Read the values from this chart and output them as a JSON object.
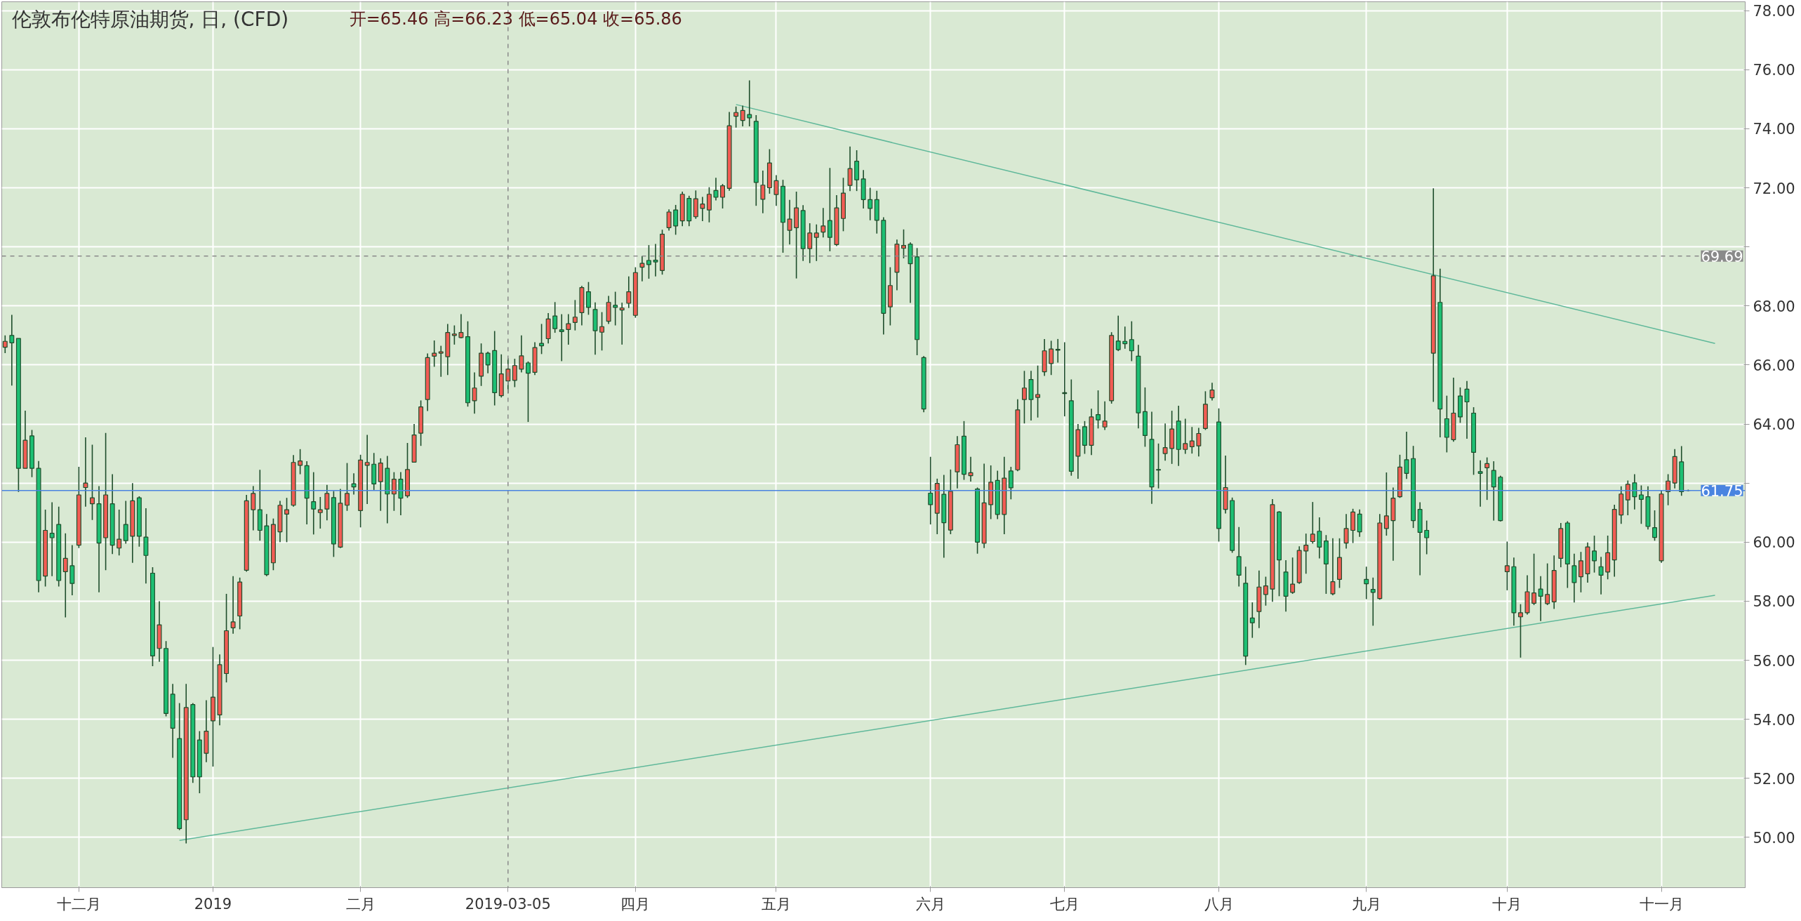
{
  "chart_data": {
    "type": "candlestick",
    "title": "伦敦布伦特原油期货, 日, (CFD)",
    "subtitle": "开=65.46 高=66.23 低=65.04 收=65.86",
    "categories": [
      null,
      null,
      null,
      null,
      null,
      null,
      null,
      null,
      null,
      null,
      null,
      "十二月",
      null,
      null,
      null,
      null,
      null,
      null,
      null,
      null,
      null,
      null,
      null,
      null,
      null,
      null,
      null,
      null,
      null,
      null,
      null,
      "2019",
      null,
      null,
      null,
      null,
      null,
      null,
      null,
      null,
      null,
      null,
      null,
      null,
      null,
      null,
      null,
      null,
      null,
      null,
      null,
      null,
      null,
      "二月",
      null,
      null,
      null,
      null,
      null,
      null,
      null,
      null,
      null,
      null,
      null,
      null,
      null,
      null,
      null,
      null,
      null,
      null,
      null,
      null,
      null,
      "2019-03-05",
      null,
      null,
      null,
      null,
      null,
      null,
      null,
      null,
      null,
      null,
      null,
      null,
      null,
      null,
      null,
      null,
      null,
      null,
      "四月",
      null,
      null,
      null,
      null,
      null,
      null,
      null,
      null,
      null,
      null,
      null,
      null,
      null,
      null,
      null,
      null,
      null,
      null,
      null,
      null,
      "五月",
      null,
      null,
      null,
      null,
      null,
      null,
      null,
      null,
      null,
      null,
      null,
      null,
      null,
      null,
      null,
      null,
      null,
      null,
      null,
      null,
      null,
      null,
      "六月",
      null,
      null,
      null,
      null,
      null,
      null,
      null,
      null,
      null,
      null,
      null,
      null,
      null,
      null,
      null,
      null,
      null,
      null,
      null,
      "七月",
      null,
      null,
      null,
      null,
      null,
      null,
      null,
      null,
      null,
      null,
      null,
      null,
      null,
      null,
      null,
      null,
      null,
      null,
      null,
      null,
      null,
      null,
      "八月",
      null,
      null,
      null,
      null,
      null,
      null,
      null,
      null,
      null,
      null,
      null,
      null,
      null,
      null,
      null,
      null,
      null,
      null,
      null,
      null,
      null,
      "九月",
      null,
      null,
      null,
      null,
      null,
      null,
      null,
      null,
      null,
      null,
      null,
      null,
      null,
      null,
      null,
      null,
      null,
      null,
      null,
      null,
      "十月",
      null,
      null,
      null,
      null,
      null,
      null,
      null,
      null,
      null,
      null,
      null,
      null,
      null,
      null,
      null,
      null,
      null,
      null,
      null,
      null,
      null,
      null,
      "十一月",
      null,
      null,
      null,
      null,
      null,
      null,
      null,
      null,
      null,
      null,
      null,
      null
    ],
    "ohlc": [
      [
        66.6,
        67.0,
        66.4,
        66.8
      ],
      [
        67.0,
        67.7,
        65.3,
        66.75
      ],
      [
        66.9,
        66.9,
        61.7,
        62.5
      ],
      [
        62.5,
        64.45,
        62.5,
        63.45
      ],
      [
        63.6,
        63.8,
        62.2,
        62.5
      ],
      [
        62.5,
        62.75,
        58.3,
        58.7
      ],
      [
        58.85,
        61.1,
        58.5,
        60.4
      ],
      [
        60.3,
        61.35,
        58.85,
        60.15
      ],
      [
        60.6,
        61.2,
        58.5,
        58.7
      ],
      [
        59.0,
        60.3,
        57.45,
        59.45
      ],
      [
        59.2,
        59.9,
        58.2,
        58.6
      ],
      [
        59.9,
        62.55,
        59.8,
        61.6
      ],
      [
        61.85,
        63.55,
        61.2,
        62.0
      ],
      [
        61.3,
        63.3,
        60.75,
        61.5
      ],
      [
        61.3,
        61.9,
        58.3,
        59.97
      ],
      [
        60.15,
        63.7,
        59.05,
        61.6
      ],
      [
        61.3,
        62.3,
        59.6,
        59.9
      ],
      [
        59.8,
        61.1,
        59.55,
        60.1
      ],
      [
        60.6,
        61.4,
        59.95,
        60.05
      ],
      [
        60.2,
        62.0,
        59.3,
        61.4
      ],
      [
        61.5,
        61.55,
        59.85,
        60.2
      ],
      [
        60.17,
        61.15,
        58.6,
        59.55
      ],
      [
        58.95,
        59.15,
        55.8,
        56.15
      ],
      [
        56.4,
        58.0,
        55.95,
        57.2
      ],
      [
        56.4,
        56.65,
        54.1,
        54.2
      ],
      [
        54.85,
        55.2,
        52.7,
        53.7
      ],
      [
        53.35,
        54.55,
        50.25,
        50.3
      ],
      [
        50.6,
        55.2,
        49.8,
        54.4
      ],
      [
        54.5,
        54.55,
        51.85,
        52.05
      ],
      [
        53.3,
        53.6,
        51.5,
        52.05
      ],
      [
        52.85,
        54.65,
        52.55,
        53.6
      ],
      [
        53.95,
        56.45,
        52.4,
        54.75
      ],
      [
        54.15,
        56.2,
        53.8,
        55.85
      ],
      [
        55.55,
        58.25,
        55.25,
        57.0
      ],
      [
        57.1,
        58.85,
        56.9,
        57.3
      ],
      [
        57.5,
        58.8,
        57.05,
        58.65
      ],
      [
        59.05,
        61.6,
        59.0,
        61.4
      ],
      [
        61.1,
        61.9,
        60.4,
        61.65
      ],
      [
        61.1,
        62.45,
        60.05,
        60.4
      ],
      [
        60.55,
        60.95,
        58.85,
        58.9
      ],
      [
        59.3,
        60.8,
        59.05,
        60.6
      ],
      [
        60.35,
        61.4,
        60.0,
        61.25
      ],
      [
        60.95,
        61.5,
        60.0,
        61.1
      ],
      [
        61.25,
        62.95,
        61.2,
        62.7
      ],
      [
        62.6,
        63.15,
        62.3,
        62.75
      ],
      [
        62.59,
        62.74,
        60.6,
        61.49
      ],
      [
        61.37,
        62.37,
        60.26,
        61.12
      ],
      [
        61.0,
        61.53,
        60.46,
        61.1
      ],
      [
        61.12,
        61.94,
        60.74,
        61.65
      ],
      [
        61.51,
        61.73,
        59.5,
        59.94
      ],
      [
        59.83,
        61.8,
        59.8,
        61.32
      ],
      [
        61.25,
        62.68,
        61.06,
        61.65
      ],
      [
        61.98,
        62.33,
        61.61,
        61.87
      ],
      [
        61.07,
        62.96,
        60.5,
        62.78
      ],
      [
        62.6,
        63.63,
        61.29,
        62.7
      ],
      [
        62.64,
        63.02,
        61.77,
        61.97
      ],
      [
        62.05,
        62.84,
        61.06,
        62.68
      ],
      [
        62.5,
        62.92,
        60.64,
        61.63
      ],
      [
        61.63,
        62.37,
        61.06,
        62.13
      ],
      [
        62.13,
        62.37,
        60.91,
        61.49
      ],
      [
        61.57,
        63.36,
        61.5,
        62.46
      ],
      [
        62.71,
        64.0,
        62.7,
        63.63
      ],
      [
        63.69,
        64.8,
        63.26,
        64.58
      ],
      [
        64.83,
        66.39,
        64.44,
        66.25
      ],
      [
        66.3,
        66.83,
        65.94,
        66.4
      ],
      [
        66.4,
        66.65,
        65.6,
        66.45
      ],
      [
        66.28,
        67.39,
        65.66,
        67.1
      ],
      [
        67.0,
        67.34,
        66.69,
        67.05
      ],
      [
        66.93,
        67.72,
        66.9,
        67.1
      ],
      [
        66.96,
        67.48,
        64.59,
        64.72
      ],
      [
        64.79,
        65.75,
        64.35,
        65.22
      ],
      [
        65.62,
        66.73,
        65.29,
        66.4
      ],
      [
        66.4,
        66.45,
        65.72,
        66.0
      ],
      [
        66.49,
        67.15,
        64.63,
        65.06
      ],
      [
        64.96,
        66.36,
        64.9,
        65.7
      ],
      [
        65.46,
        66.23,
        65.04,
        65.86
      ],
      [
        65.48,
        66.21,
        65.25,
        65.98
      ],
      [
        65.86,
        67.0,
        65.75,
        66.31
      ],
      [
        66.07,
        66.12,
        64.07,
        65.72
      ],
      [
        65.75,
        66.77,
        65.66,
        66.59
      ],
      [
        66.73,
        67.39,
        66.37,
        66.65
      ],
      [
        66.89,
        67.76,
        66.73,
        67.56
      ],
      [
        67.66,
        68.13,
        67.09,
        67.23
      ],
      [
        67.19,
        67.72,
        66.13,
        67.13
      ],
      [
        67.2,
        67.72,
        66.69,
        67.4
      ],
      [
        67.44,
        68.2,
        67.17,
        67.62
      ],
      [
        67.77,
        68.68,
        67.34,
        68.62
      ],
      [
        68.48,
        68.81,
        67.7,
        67.95
      ],
      [
        67.88,
        68.12,
        66.35,
        67.16
      ],
      [
        67.11,
        67.79,
        66.49,
        67.3
      ],
      [
        67.48,
        68.34,
        67.39,
        68.12
      ],
      [
        68.02,
        68.48,
        67.34,
        67.95
      ],
      [
        67.86,
        68.11,
        66.69,
        67.93
      ],
      [
        68.09,
        69.0,
        67.93,
        68.48
      ],
      [
        67.68,
        69.31,
        67.6,
        69.13
      ],
      [
        69.31,
        69.69,
        68.83,
        69.44
      ],
      [
        69.54,
        70.06,
        68.92,
        69.4
      ],
      [
        69.55,
        70.1,
        69.0,
        69.49
      ],
      [
        69.2,
        70.58,
        69.06,
        70.43
      ],
      [
        70.65,
        71.27,
        70.55,
        71.18
      ],
      [
        71.25,
        71.42,
        70.41,
        70.71
      ],
      [
        70.88,
        71.87,
        70.7,
        71.78
      ],
      [
        71.64,
        71.73,
        70.7,
        70.88
      ],
      [
        71.02,
        71.91,
        70.95,
        71.63
      ],
      [
        71.3,
        71.69,
        70.87,
        71.45
      ],
      [
        71.25,
        72.02,
        70.83,
        71.78
      ],
      [
        71.91,
        72.34,
        71.57,
        71.68
      ],
      [
        71.68,
        72.13,
        71.3,
        72.07
      ],
      [
        71.98,
        74.57,
        71.9,
        74.1
      ],
      [
        74.42,
        74.75,
        74.04,
        74.55
      ],
      [
        74.28,
        74.78,
        74.08,
        74.62
      ],
      [
        74.48,
        75.64,
        74.08,
        74.37
      ],
      [
        74.25,
        74.46,
        71.39,
        72.18
      ],
      [
        71.61,
        72.58,
        71.14,
        72.09
      ],
      [
        72.0,
        73.31,
        71.8,
        72.84
      ],
      [
        71.77,
        72.43,
        71.39,
        72.24
      ],
      [
        72.05,
        72.27,
        69.8,
        70.83
      ],
      [
        70.56,
        71.59,
        70.08,
        70.94
      ],
      [
        70.65,
        71.87,
        68.93,
        71.32
      ],
      [
        71.23,
        71.41,
        69.52,
        69.94
      ],
      [
        69.94,
        70.8,
        69.45,
        70.47
      ],
      [
        70.32,
        70.76,
        69.52,
        70.47
      ],
      [
        70.5,
        71.32,
        70.32,
        70.71
      ],
      [
        70.89,
        72.67,
        69.85,
        70.32
      ],
      [
        70.08,
        71.75,
        70.03,
        71.32
      ],
      [
        70.96,
        72.34,
        70.53,
        71.82
      ],
      [
        72.08,
        73.4,
        71.89,
        72.65
      ],
      [
        72.9,
        73.27,
        71.89,
        72.27
      ],
      [
        72.3,
        72.6,
        71.3,
        71.6
      ],
      [
        71.6,
        72.0,
        70.9,
        71.3
      ],
      [
        71.6,
        71.9,
        70.45,
        70.9
      ],
      [
        70.9,
        71.0,
        67.03,
        67.75
      ],
      [
        67.97,
        69.31,
        67.34,
        68.69
      ],
      [
        69.14,
        70.25,
        68.53,
        70.09
      ],
      [
        69.95,
        70.59,
        69.61,
        70.05
      ],
      [
        70.09,
        70.15,
        68.1,
        69.43
      ],
      [
        69.66,
        69.96,
        66.33,
        66.86
      ],
      [
        66.25,
        66.3,
        64.4,
        64.51
      ],
      [
        61.66,
        62.89,
        60.6,
        61.27
      ],
      [
        60.98,
        62.15,
        60.27,
        61.99
      ],
      [
        61.62,
        62.28,
        59.47,
        60.66
      ],
      [
        60.41,
        62.46,
        60.27,
        61.72
      ],
      [
        62.38,
        63.59,
        61.82,
        63.3
      ],
      [
        63.59,
        64.1,
        62.11,
        62.3
      ],
      [
        62.25,
        62.89,
        62.05,
        62.35
      ],
      [
        61.8,
        61.85,
        59.61,
        60.0
      ],
      [
        59.96,
        62.66,
        59.8,
        61.33
      ],
      [
        61.27,
        62.6,
        60.78,
        62.03
      ],
      [
        62.09,
        62.42,
        60.78,
        60.94
      ],
      [
        60.94,
        62.89,
        60.27,
        62.17
      ],
      [
        62.41,
        62.55,
        61.45,
        61.84
      ],
      [
        62.45,
        64.84,
        62.4,
        64.48
      ],
      [
        64.83,
        65.8,
        64.02,
        65.22
      ],
      [
        65.51,
        65.8,
        64.12,
        64.83
      ],
      [
        64.9,
        65.98,
        64.22,
        65.0
      ],
      [
        65.77,
        66.88,
        65.63,
        66.48
      ],
      [
        66.05,
        66.82,
        65.66,
        66.54
      ],
      [
        66.5,
        66.88,
        66.08,
        66.53
      ],
      [
        65.03,
        66.77,
        64.26,
        65.06
      ],
      [
        64.79,
        65.51,
        62.25,
        62.4
      ],
      [
        62.91,
        64.0,
        62.15,
        63.81
      ],
      [
        63.91,
        64.1,
        62.99,
        63.28
      ],
      [
        63.28,
        64.52,
        62.95,
        64.24
      ],
      [
        64.32,
        65.14,
        63.85,
        64.14
      ],
      [
        63.9,
        64.77,
        63.8,
        64.1
      ],
      [
        64.79,
        67.11,
        64.69,
        67.0
      ],
      [
        66.81,
        67.67,
        66.47,
        66.52
      ],
      [
        66.8,
        67.3,
        66.55,
        66.72
      ],
      [
        66.86,
        67.48,
        66.13,
        66.48
      ],
      [
        66.3,
        66.68,
        63.85,
        64.38
      ],
      [
        64.42,
        65.24,
        63.23,
        63.61
      ],
      [
        63.48,
        64.42,
        61.3,
        61.87
      ],
      [
        62.46,
        63.34,
        61.82,
        62.44
      ],
      [
        63.0,
        64.02,
        62.76,
        63.2
      ],
      [
        63.17,
        64.45,
        62.65,
        63.83
      ],
      [
        64.1,
        64.62,
        62.58,
        63.14
      ],
      [
        63.14,
        64.18,
        62.99,
        63.34
      ],
      [
        63.23,
        63.9,
        63.0,
        63.43
      ],
      [
        63.26,
        63.87,
        62.9,
        63.68
      ],
      [
        63.85,
        65.11,
        63.8,
        64.67
      ],
      [
        64.89,
        65.4,
        64.8,
        65.15
      ],
      [
        64.07,
        64.53,
        60.02,
        60.46
      ],
      [
        61.11,
        62.93,
        60.97,
        61.85
      ],
      [
        61.41,
        61.51,
        59.64,
        59.72
      ],
      [
        59.51,
        60.51,
        58.5,
        58.88
      ],
      [
        58.61,
        59.17,
        55.84,
        56.14
      ],
      [
        57.43,
        57.96,
        56.76,
        57.27
      ],
      [
        57.65,
        59.04,
        57.09,
        58.48
      ],
      [
        58.23,
        58.83,
        57.85,
        58.52
      ],
      [
        58.41,
        61.46,
        57.98,
        61.27
      ],
      [
        61.02,
        61.05,
        58.17,
        59.4
      ],
      [
        58.99,
        59.39,
        57.65,
        58.17
      ],
      [
        58.3,
        59.48,
        58.25,
        58.58
      ],
      [
        58.63,
        59.86,
        58.59,
        59.72
      ],
      [
        59.7,
        60.29,
        58.93,
        59.9
      ],
      [
        60.02,
        61.36,
        59.95,
        60.27
      ],
      [
        60.37,
        60.84,
        59.45,
        59.83
      ],
      [
        60.04,
        60.24,
        58.25,
        59.26
      ],
      [
        58.25,
        60.13,
        58.2,
        58.66
      ],
      [
        58.74,
        60.13,
        58.45,
        59.48
      ],
      [
        59.97,
        60.95,
        59.78,
        60.46
      ],
      [
        60.4,
        61.13,
        59.97,
        61.02
      ],
      [
        60.95,
        61.11,
        60.18,
        60.35
      ],
      [
        58.74,
        59.17,
        58.07,
        58.59
      ],
      [
        58.4,
        58.8,
        57.17,
        58.3
      ],
      [
        58.09,
        60.95,
        58.05,
        60.65
      ],
      [
        60.46,
        62.36,
        60.22,
        60.89
      ],
      [
        60.73,
        61.85,
        59.37,
        61.49
      ],
      [
        61.54,
        62.96,
        61.5,
        62.54
      ],
      [
        62.79,
        63.74,
        62.14,
        62.33
      ],
      [
        62.83,
        63.26,
        60.48,
        60.73
      ],
      [
        61.11,
        61.35,
        58.88,
        60.33
      ],
      [
        60.4,
        60.73,
        59.59,
        60.15
      ],
      [
        66.4,
        71.98,
        64.75,
        69.02
      ],
      [
        68.12,
        69.26,
        63.55,
        64.51
      ],
      [
        64.18,
        64.96,
        63.04,
        63.55
      ],
      [
        63.47,
        65.57,
        63.4,
        64.37
      ],
      [
        64.95,
        65.24,
        64.04,
        64.24
      ],
      [
        65.18,
        65.46,
        63.5,
        64.75
      ],
      [
        64.37,
        64.57,
        62.28,
        63.04
      ],
      [
        62.39,
        62.77,
        61.2,
        62.33
      ],
      [
        62.52,
        62.87,
        61.43,
        62.66
      ],
      [
        62.43,
        62.74,
        60.73,
        61.87
      ],
      [
        62.2,
        62.25,
        60.7,
        60.73
      ],
      [
        59.0,
        60.02,
        58.37,
        59.2
      ],
      [
        59.17,
        59.48,
        57.17,
        57.61
      ],
      [
        57.47,
        57.9,
        56.09,
        57.61
      ],
      [
        57.61,
        58.88,
        57.55,
        58.32
      ],
      [
        57.93,
        59.61,
        57.87,
        58.28
      ],
      [
        58.41,
        58.85,
        57.33,
        58.17
      ],
      [
        57.92,
        59.28,
        57.87,
        58.23
      ],
      [
        57.98,
        59.55,
        57.74,
        59.04
      ],
      [
        59.45,
        60.65,
        59.15,
        60.46
      ],
      [
        60.65,
        60.71,
        58.45,
        59.26
      ],
      [
        59.2,
        59.61,
        57.96,
        58.63
      ],
      [
        58.83,
        59.67,
        58.3,
        59.37
      ],
      [
        58.93,
        59.99,
        58.63,
        59.84
      ],
      [
        59.7,
        60.22,
        58.97,
        59.37
      ],
      [
        59.17,
        59.5,
        58.23,
        58.88
      ],
      [
        58.99,
        60.22,
        58.74,
        59.64
      ],
      [
        59.4,
        61.27,
        58.83,
        61.11
      ],
      [
        60.92,
        61.89,
        60.62,
        61.63
      ],
      [
        61.43,
        62.09,
        60.91,
        61.96
      ],
      [
        62.01,
        62.3,
        61.11,
        61.54
      ],
      [
        61.6,
        61.92,
        60.62,
        61.45
      ],
      [
        61.54,
        61.89,
        60.43,
        60.53
      ],
      [
        60.49,
        61.08,
        60.05,
        60.16
      ],
      [
        59.37,
        61.76,
        59.3,
        61.63
      ],
      [
        61.71,
        62.3,
        61.25,
        62.07
      ],
      [
        62.0,
        63.15,
        61.82,
        62.9
      ],
      [
        62.72,
        63.25,
        61.57,
        61.71
      ],
      [
        61.75,
        61.78,
        61.72,
        61.75
      ],
      null,
      null,
      null,
      null,
      null,
      null,
      null,
      null
    ],
    "color": "#1e4d2b",
    "colors": [
      "#f25c54",
      "#1dbf73",
      "#1dbf73",
      "#f25c54",
      "#1dbf73",
      "#1dbf73",
      "#f25c54",
      "#1dbf73",
      "#1dbf73",
      "#f25c54",
      "#1dbf73",
      "#f25c54",
      "#f25c54",
      "#f25c54",
      "#1dbf73",
      "#f25c54",
      "#1dbf73",
      "#f25c54",
      "#1dbf73",
      "#f25c54",
      "#1dbf73",
      "#1dbf73",
      "#1dbf73",
      "#f25c54",
      "#1dbf73",
      "#1dbf73",
      "#1dbf73",
      "#f25c54",
      "#1dbf73",
      "#1dbf73",
      "#f25c54",
      "#f25c54",
      "#f25c54",
      "#f25c54",
      "#f25c54",
      "#f25c54",
      "#f25c54",
      "#f25c54",
      "#1dbf73",
      "#1dbf73",
      "#f25c54",
      "#f25c54",
      "#f25c54",
      "#f25c54",
      "#f25c54",
      "#1dbf73",
      "#1dbf73",
      "#f25c54",
      "#f25c54",
      "#1dbf73",
      "#f25c54",
      "#f25c54",
      "#1dbf73",
      "#f25c54",
      "#f25c54",
      "#1dbf73",
      "#f25c54",
      "#1dbf73",
      "#f25c54",
      "#1dbf73",
      "#f25c54",
      "#f25c54",
      "#f25c54",
      "#f25c54",
      "#f25c54",
      "#f25c54",
      "#f25c54",
      "#f25c54",
      "#f25c54",
      "#1dbf73",
      "#f25c54",
      "#f25c54",
      "#1dbf73",
      "#1dbf73",
      "#f25c54",
      "#f25c54",
      "#f25c54",
      "#f25c54",
      "#1dbf73",
      "#f25c54",
      "#1dbf73",
      "#f25c54",
      "#1dbf73",
      "#1dbf73",
      "#f25c54",
      "#f25c54",
      "#f25c54",
      "#1dbf73",
      "#1dbf73",
      "#f25c54",
      "#f25c54",
      "#1dbf73",
      "#f25c54",
      "#f25c54",
      "#f25c54",
      "#f25c54",
      "#1dbf73",
      "#1dbf73",
      "#f25c54",
      "#f25c54",
      "#1dbf73",
      "#f25c54",
      "#1dbf73",
      "#f25c54",
      "#f25c54",
      "#f25c54",
      "#1dbf73",
      "#f25c54",
      "#f25c54",
      "#f25c54",
      "#f25c54",
      "#1dbf73",
      "#1dbf73",
      "#f25c54",
      "#f25c54",
      "#f25c54",
      "#1dbf73",
      "#f25c54",
      "#f25c54",
      "#1dbf73",
      "#f25c54",
      "#f25c54",
      "#f25c54",
      "#1dbf73",
      "#f25c54",
      "#f25c54",
      "#f25c54",
      "#1dbf73",
      "#1dbf73",
      "#1dbf73",
      "#1dbf73",
      "#1dbf73",
      "#f25c54",
      "#f25c54",
      "#f25c54",
      "#1dbf73",
      "#1dbf73",
      "#1dbf73",
      "#1dbf73",
      "#f25c54",
      "#1dbf73",
      "#f25c54",
      "#f25c54",
      "#1dbf73",
      "#f25c54",
      "#1dbf73",
      "#f25c54",
      "#f25c54",
      "#1dbf73",
      "#f25c54",
      "#1dbf73",
      "#f25c54",
      "#f25c54",
      "#1dbf73",
      "#f25c54",
      "#f25c54",
      "#f25c54",
      "#f25c54",
      "#f25c54",
      "#1dbf73",
      "#f25c54",
      "#1dbf73",
      "#f25c54",
      "#1dbf73",
      "#f25c54",
      "#f25c54",
      "#1dbf73",
      "#1dbf73",
      "#1dbf73",
      "#1dbf73",
      "#1dbf73",
      "#1dbf73",
      "#1dbf73",
      "#f25c54",
      "#f25c54",
      "#1dbf73",
      "#f25c54",
      "#f25c54",
      "#f25c54",
      "#f25c54",
      "#f25c54",
      "#1dbf73",
      "#f25c54",
      "#1dbf73",
      "#1dbf73",
      "#1dbf73",
      "#1dbf73",
      "#f25c54",
      "#f25c54",
      "#f25c54",
      "#1dbf73",
      "#1dbf73",
      "#f25c54",
      "#f25c54",
      "#f25c54",
      "#f25c54",
      "#1dbf73",
      "#1dbf73",
      "#f25c54",
      "#f25c54",
      "#f25c54",
      "#f25c54",
      "#1dbf73",
      "#1dbf73",
      "#1dbf73",
      "#f25c54",
      "#f25c54",
      "#f25c54",
      "#f25c54",
      "#1dbf73",
      "#1dbf73",
      "#1dbf73",
      "#1dbf73",
      "#f25c54",
      "#1dbf73",
      "#1dbf73",
      "#f25c54",
      "#1dbf73",
      "#1dbf73",
      "#1dbf73",
      "#1dbf73",
      "#f25c54",
      "#1dbf73",
      "#1dbf73",
      "#f25c54",
      "#1dbf73",
      "#f25c54",
      "#f25c54",
      "#f25c54",
      "#1dbf73",
      "#f25c54",
      "#f25c54",
      "#f25c54",
      "#1dbf73",
      "#1dbf73",
      "#f25c54",
      "#f25c54",
      "#1dbf73",
      "#1dbf73",
      "#f25c54",
      "#f25c54",
      "#f25c54",
      "#f25c54",
      "#1dbf73",
      "#1dbf73",
      "#1dbf73",
      "#1dbf73",
      "#f25c54",
      "#f25c54",
      "#f25c54",
      "#1dbf73",
      "#1e4d2b",
      null,
      null,
      null,
      null,
      null,
      null,
      null,
      null
    ],
    "series": [
      {
        "type": "line",
        "color": "#5fb89a",
        "values": [
          null,
          null,
          null,
          null,
          null,
          null,
          null,
          null,
          null,
          null,
          null,
          null,
          null,
          null,
          null,
          null,
          null,
          null,
          null,
          null,
          null,
          null,
          null,
          null,
          null,
          null,
          null,
          null,
          null,
          null,
          null,
          null,
          null,
          null,
          null,
          null,
          null,
          null,
          null,
          null,
          null,
          null,
          null,
          null,
          null,
          null,
          null,
          null,
          null,
          null,
          null,
          null,
          null,
          null,
          null,
          null,
          null,
          null,
          null,
          null,
          null,
          null,
          null,
          null,
          null,
          null,
          null,
          null,
          null,
          null,
          null,
          null,
          null,
          null,
          null,
          null,
          null,
          null,
          null,
          null,
          null,
          null,
          null,
          null,
          null,
          null,
          null,
          null,
          null,
          null,
          null,
          null,
          null,
          null,
          null,
          null,
          null,
          null,
          null,
          null,
          null,
          null,
          null,
          null,
          null,
          null,
          null,
          null,
          null,
          74.82,
          null,
          null,
          null,
          null,
          null,
          null,
          null,
          null,
          null,
          null,
          null,
          null,
          null,
          null,
          null,
          null,
          null,
          null,
          null,
          null,
          null,
          null,
          null,
          null,
          null,
          null,
          null,
          null,
          null,
          null,
          null,
          null,
          null,
          null,
          null,
          null,
          null,
          null,
          null,
          null,
          null,
          null,
          null,
          null,
          null,
          null,
          null,
          null,
          null,
          null,
          null,
          null,
          null,
          null,
          null,
          null,
          null,
          null,
          null,
          null,
          null,
          null,
          null,
          null,
          null,
          null,
          null,
          null,
          null,
          null,
          null,
          null,
          null,
          null,
          null,
          null,
          null,
          null,
          null,
          null,
          null,
          null,
          null,
          null,
          null,
          null,
          null,
          null,
          null,
          null,
          null,
          null,
          null,
          null,
          null,
          null,
          null,
          null,
          null,
          null,
          null,
          null,
          null,
          null,
          null,
          null,
          null,
          null,
          null,
          null,
          null,
          null,
          null,
          null,
          null,
          null,
          null,
          null,
          null,
          null,
          null,
          null,
          null,
          null,
          null,
          null,
          null,
          null,
          null,
          null,
          null,
          null,
          null,
          null,
          null,
          null,
          null,
          null,
          null,
          null,
          null,
          null,
          null,
          null,
          null,
          66.73,
          null,
          null,
          null,
          null
        ]
      },
      {
        "type": "line",
        "color": "#5fb89a",
        "values": [
          null,
          null,
          null,
          null,
          null,
          null,
          null,
          null,
          null,
          null,
          null,
          null,
          null,
          null,
          null,
          null,
          null,
          null,
          null,
          null,
          null,
          null,
          null,
          null,
          null,
          null,
          49.9,
          null,
          null,
          null,
          null,
          null,
          null,
          null,
          null,
          null,
          null,
          null,
          null,
          null,
          null,
          null,
          null,
          null,
          null,
          null,
          null,
          null,
          null,
          null,
          null,
          null,
          null,
          null,
          null,
          null,
          null,
          null,
          null,
          null,
          null,
          null,
          null,
          null,
          null,
          null,
          null,
          null,
          null,
          null,
          null,
          null,
          null,
          null,
          null,
          null,
          null,
          null,
          null,
          null,
          null,
          null,
          null,
          null,
          null,
          null,
          null,
          null,
          null,
          null,
          null,
          null,
          null,
          null,
          null,
          null,
          null,
          null,
          null,
          null,
          null,
          null,
          null,
          null,
          null,
          null,
          null,
          null,
          null,
          null,
          null,
          null,
          null,
          null,
          null,
          null,
          null,
          null,
          null,
          null,
          null,
          null,
          null,
          null,
          null,
          null,
          null,
          null,
          null,
          null,
          null,
          null,
          null,
          null,
          null,
          null,
          null,
          null,
          null,
          null,
          null,
          null,
          null,
          null,
          null,
          null,
          null,
          null,
          null,
          null,
          null,
          null,
          null,
          null,
          null,
          null,
          null,
          null,
          null,
          null,
          null,
          null,
          null,
          null,
          null,
          null,
          null,
          null,
          null,
          null,
          null,
          null,
          null,
          null,
          null,
          null,
          null,
          null,
          null,
          null,
          null,
          null,
          null,
          null,
          null,
          null,
          null,
          null,
          null,
          null,
          null,
          null,
          null,
          null,
          null,
          null,
          null,
          null,
          null,
          null,
          null,
          null,
          null,
          null,
          null,
          null,
          null,
          null,
          null,
          null,
          null,
          null,
          null,
          null,
          null,
          null,
          null,
          null,
          null,
          null,
          null,
          null,
          null,
          null,
          null,
          null,
          null,
          null,
          null,
          null,
          null,
          null,
          null,
          null,
          null,
          null,
          null,
          null,
          null,
          null,
          null,
          null,
          null,
          null,
          null,
          null,
          null,
          null,
          null,
          null,
          null,
          null,
          null,
          null,
          null,
          58.2,
          null,
          null,
          null,
          null
        ]
      }
    ],
    "ylim": [
      48.3,
      78.3
    ],
    "yticks": [
      {
        "value": 50,
        "label": "50.00"
      },
      {
        "value": 52,
        "label": "52.00"
      },
      {
        "value": 54,
        "label": "54.00"
      },
      {
        "value": 56,
        "label": "56.00"
      },
      {
        "value": 58,
        "label": "58.00"
      },
      {
        "value": 60,
        "label": "60.00"
      },
      {
        "value": 62,
        "label": null
      },
      {
        "value": 64,
        "label": "64.00"
      },
      {
        "value": 66,
        "label": "66.00"
      },
      {
        "value": 68,
        "label": "68.00"
      },
      {
        "value": 70,
        "label": null
      },
      {
        "value": 72,
        "label": "72.00"
      },
      {
        "value": 74,
        "label": "74.00"
      },
      {
        "value": 76,
        "label": "76.00"
      },
      {
        "value": 78,
        "label": "78.00"
      }
    ],
    "ref_lines": [
      {
        "axis": "x",
        "value": "2019-03-05",
        "color": "#8a8a8a",
        "line_style": "dashed"
      },
      {
        "axis": "y",
        "value": 69.69,
        "label": "69.69",
        "color": "#8a8a8a",
        "line_style": "dashed"
      },
      {
        "axis": "y",
        "value": 61.75,
        "label": "61.75",
        "color": "#4a84e0",
        "line_style": "solid"
      }
    ],
    "grid": true
  }
}
